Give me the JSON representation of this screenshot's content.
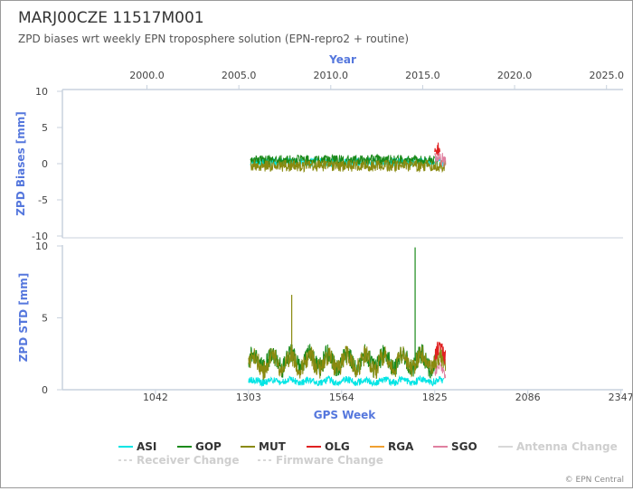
{
  "header": {
    "title": "MARJ00CZE 11517M001",
    "subtitle": "ZPD biases wrt weekly EPN troposphere solution (EPN-repro2 + routine)"
  },
  "credit": "© EPN Central",
  "colors": {
    "ASI": "#00e5e5",
    "GOP": "#1a8a1a",
    "MUT": "#8a8a10",
    "OLG": "#e02020",
    "RGA": "#f0a030",
    "SGO": "#e080a0",
    "axis_title": "#5577dd"
  },
  "chart_data": [
    {
      "type": "line",
      "name": "biases-panel",
      "ylabel": "ZPD Biases [mm]",
      "ylim": [
        -10,
        10
      ],
      "yticks": [
        "10",
        "5",
        "0",
        "-5",
        "-10"
      ],
      "top_axis_title": "Year",
      "top_ticks": [
        "2000.0",
        "2005.0",
        "2010.0",
        "2015.0",
        "2020.0",
        "2025.0"
      ],
      "xlim_year": [
        1995.4,
        2025.9
      ],
      "series": [
        {
          "name": "ASI",
          "x_range": [
            2005.1,
            2015.5
          ],
          "level": 0.2,
          "noise": 0.6
        },
        {
          "name": "GOP",
          "x_range": [
            2005.1,
            2015.0
          ],
          "level": 0.5,
          "noise": 0.7
        },
        {
          "name": "MUT",
          "x_range": [
            2005.1,
            2015.6
          ],
          "level": -0.3,
          "noise": 0.8
        },
        {
          "name": "OLG",
          "x_range": [
            2015.0,
            2015.3
          ],
          "level": 1.8,
          "noise": 1.2
        },
        {
          "name": "SGO",
          "x_range": [
            2015.0,
            2015.6
          ],
          "level": 0.5,
          "noise": 1.0
        }
      ]
    },
    {
      "type": "line",
      "name": "std-panel",
      "ylabel": "ZPD STD [mm]",
      "xlabel": "GPS Week",
      "ylim": [
        0,
        10
      ],
      "yticks": [
        "10",
        "5",
        "0"
      ],
      "xticks": [
        "1042",
        "1303",
        "1564",
        "1825",
        "2086",
        "2347"
      ],
      "xlim_week": [
        781,
        2353
      ],
      "series": [
        {
          "name": "ASI",
          "x_range": [
            1303,
            1850
          ],
          "level": 0.6,
          "noise": 0.25
        },
        {
          "name": "GOP",
          "x_range": [
            1303,
            1825
          ],
          "level": 2.0,
          "noise": 0.7
        },
        {
          "name": "MUT",
          "x_range": [
            1303,
            1855
          ],
          "level": 1.9,
          "noise": 0.7
        },
        {
          "name": "OLG",
          "x_range": [
            1825,
            1855
          ],
          "level": 2.4,
          "noise": 0.6
        },
        {
          "name": "SGO",
          "x_range": [
            1825,
            1855
          ],
          "level": 1.1,
          "noise": 0.3
        }
      ],
      "spikes": [
        {
          "series": "MUT",
          "x": 1424,
          "y": 6.6
        },
        {
          "series": "GOP",
          "x": 1770,
          "y": 9.9
        }
      ]
    }
  ],
  "legend": {
    "items": [
      {
        "label": "ASI",
        "color": "#00e5e5",
        "dashed": false,
        "off": false
      },
      {
        "label": "GOP",
        "color": "#1a8a1a",
        "dashed": false,
        "off": false
      },
      {
        "label": "MUT",
        "color": "#8a8a10",
        "dashed": false,
        "off": false
      },
      {
        "label": "OLG",
        "color": "#e02020",
        "dashed": false,
        "off": false
      },
      {
        "label": "RGA",
        "color": "#f0a030",
        "dashed": false,
        "off": false
      },
      {
        "label": "SGO",
        "color": "#e080a0",
        "dashed": false,
        "off": false
      },
      {
        "label": "Antenna Change",
        "color": "#d8d8d8",
        "dashed": false,
        "off": true
      },
      {
        "label": "Receiver Change",
        "color": "#d8d8d8",
        "dashed": true,
        "off": true
      },
      {
        "label": "Firmware Change",
        "color": "#d8d8d8",
        "dashed": true,
        "off": true
      }
    ]
  }
}
